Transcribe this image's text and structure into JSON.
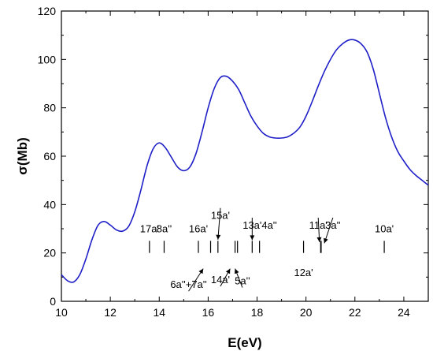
{
  "chart_data": {
    "type": "line",
    "xlabel": "E(eV)",
    "ylabel": "σ(Mb)",
    "xlim": [
      10,
      25
    ],
    "ylim": [
      0,
      120
    ],
    "xticks": [
      10,
      12,
      14,
      16,
      18,
      20,
      22,
      24
    ],
    "yticks": [
      0,
      20,
      40,
      60,
      80,
      100,
      120
    ],
    "series": [
      {
        "color": "#1f1fc8",
        "x": [
          10.0,
          10.25,
          10.5,
          10.75,
          11.0,
          11.25,
          11.5,
          11.75,
          12.0,
          12.25,
          12.5,
          12.75,
          13.0,
          13.25,
          13.5,
          13.75,
          14.0,
          14.25,
          14.5,
          14.75,
          15.0,
          15.25,
          15.5,
          15.75,
          16.0,
          16.25,
          16.5,
          16.75,
          17.0,
          17.25,
          17.5,
          17.75,
          18.0,
          18.25,
          18.5,
          18.75,
          19.0,
          19.25,
          19.5,
          19.75,
          20.0,
          20.25,
          20.5,
          20.75,
          21.0,
          21.25,
          21.5,
          21.75,
          22.0,
          22.25,
          22.5,
          22.75,
          23.0,
          23.25,
          23.5,
          23.75,
          24.0,
          24.25,
          24.5,
          24.75,
          25.0
        ],
        "y": [
          11.0,
          8.5,
          8.0,
          11.0,
          17.5,
          25.5,
          31.5,
          33.0,
          31.5,
          29.5,
          29.0,
          31.0,
          37.0,
          46.0,
          56.0,
          63.0,
          65.5,
          63.5,
          59.5,
          55.5,
          54.0,
          55.5,
          61.0,
          70.0,
          80.0,
          88.0,
          92.5,
          93.0,
          91.0,
          87.5,
          82.0,
          76.5,
          72.5,
          69.5,
          68.0,
          67.5,
          67.5,
          68.0,
          69.5,
          72.0,
          76.5,
          82.5,
          89.0,
          95.0,
          100.0,
          104.0,
          106.5,
          108.0,
          108.0,
          106.5,
          103.0,
          96.0,
          86.0,
          76.0,
          68.0,
          62.0,
          58.0,
          54.5,
          52.0,
          50.0,
          48.0
        ]
      }
    ],
    "stick_lines": {
      "y_range": [
        20,
        25
      ],
      "positions": [
        13.6,
        14.2,
        15.6,
        16.1,
        16.4,
        17.1,
        17.2,
        17.8,
        18.1,
        19.9,
        20.6,
        20.62,
        23.2
      ]
    },
    "annotations": [
      {
        "text": "17a'",
        "x": 13.6,
        "y": 28.5,
        "arrow": false
      },
      {
        "text": "8a''",
        "x": 14.2,
        "y": 28.5,
        "arrow": false
      },
      {
        "text": "16a'",
        "x": 15.6,
        "y": 28.5,
        "arrow": false
      },
      {
        "text": "15a'",
        "x": 16.5,
        "y": 34.0,
        "arrow": true,
        "ax": 16.4,
        "ay": 25.5
      },
      {
        "text": "13a'",
        "x": 17.8,
        "y": 30.0,
        "arrow": true,
        "ax": 17.8,
        "ay": 25.3
      },
      {
        "text": "4a''",
        "x": 18.5,
        "y": 30.0,
        "arrow": false
      },
      {
        "text": "11a'",
        "x": 20.5,
        "y": 30.0,
        "arrow": true,
        "ax": 20.55,
        "ay": 24.5
      },
      {
        "text": "3a''",
        "x": 21.1,
        "y": 30.0,
        "arrow": true,
        "ax": 20.75,
        "ay": 24.0
      },
      {
        "text": "10a'",
        "x": 23.2,
        "y": 28.5,
        "arrow": false
      },
      {
        "text": "6a''+7a''",
        "x": 15.2,
        "y": 5.5,
        "arrow": true,
        "ax": 15.8,
        "ay": 13.5
      },
      {
        "text": "14a'",
        "x": 16.5,
        "y": 7.5,
        "arrow": true,
        "ax": 16.9,
        "ay": 13.5
      },
      {
        "text": "5a''",
        "x": 17.4,
        "y": 7.0,
        "arrow": true,
        "ax": 17.1,
        "ay": 13.5
      },
      {
        "text": "12a'",
        "x": 19.9,
        "y": 10.5,
        "arrow": false
      }
    ]
  }
}
